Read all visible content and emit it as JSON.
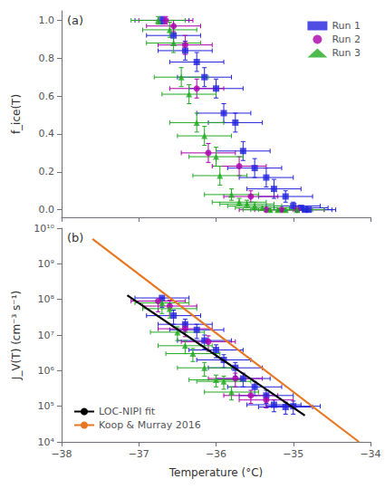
{
  "chart_data": [
    {
      "type": "scatter",
      "ylabel": "f_ice(T)",
      "annotations": [
        "(a)"
      ],
      "xlim": [
        -38,
        -34
      ],
      "xticks": [
        -38,
        -37,
        -36,
        -35,
        -34
      ],
      "ylim": [
        -0.04,
        1.05
      ],
      "yticks": [
        {
          "value": 0,
          "label": "0.0"
        },
        0.2,
        0.4,
        0.6,
        0.8,
        {
          "value": 1,
          "label": "1.0"
        }
      ],
      "tick_labels": "y",
      "grid": false,
      "legend": "upper right",
      "series": [
        {
          "name": "Run 1",
          "color": "#2222dd",
          "marker": "square",
          "x": [
            -36.7,
            -36.55,
            -36.4,
            -36.25,
            -36.15,
            -36.0,
            -35.9,
            -35.75,
            -35.65,
            -35.5,
            -35.35,
            -35.25,
            -35.1,
            -35.0,
            -34.9,
            -34.85,
            -34.8
          ],
          "values": [
            1.0,
            0.92,
            0.84,
            0.78,
            0.7,
            0.64,
            0.51,
            0.46,
            0.31,
            0.22,
            0.17,
            0.11,
            0.07,
            0.02,
            0.01,
            0.0,
            0.0
          ],
          "xerr_lo": [
            0.35,
            0.35,
            0.35,
            0.35,
            0.35,
            0.35,
            0.35,
            0.35,
            0.35,
            0.35,
            0.35,
            0.35,
            0.35,
            0.35,
            0.35,
            0.35,
            0.35
          ],
          "xerr_hi": [
            0.35,
            0.35,
            0.35,
            0.35,
            0.35,
            0.35,
            0.35,
            0.35,
            0.35,
            0.35,
            0.35,
            0.35,
            0.35,
            0.35,
            0.35,
            0.35,
            0.35
          ],
          "yerr": [
            0.02,
            0.05,
            0.05,
            0.05,
            0.05,
            0.05,
            0.05,
            0.05,
            0.05,
            0.05,
            0.05,
            0.05,
            0.03,
            0.02,
            0.01,
            0.01,
            0.01
          ]
        },
        {
          "name": "Run 2",
          "color": "#aa00aa",
          "marker": "circle",
          "x": [
            -36.65,
            -36.55,
            -36.4,
            -36.25,
            -36.1,
            -35.7,
            -35.55,
            -35.35,
            -35.15,
            -34.95
          ],
          "values": [
            1.0,
            0.97,
            0.87,
            0.64,
            0.3,
            0.23,
            0.07,
            0.0,
            0.0,
            0.0
          ],
          "xerr_lo": [
            0.35,
            0.35,
            0.35,
            0.35,
            0.35,
            0.35,
            0.35,
            0.35,
            0.35,
            0.35
          ],
          "xerr_hi": [
            0.35,
            0.35,
            0.35,
            0.35,
            0.35,
            0.35,
            0.35,
            0.35,
            0.35,
            0.35
          ],
          "yerr": [
            0.02,
            0.03,
            0.05,
            0.05,
            0.05,
            0.05,
            0.03,
            0.01,
            0.01,
            0.01
          ]
        },
        {
          "name": "Run 3",
          "color": "#22aa22",
          "marker": "triangle",
          "x": [
            -36.75,
            -36.6,
            -36.55,
            -36.45,
            -36.35,
            -36.25,
            -36.15,
            -36.0,
            -35.95,
            -35.8,
            -35.7,
            -35.6,
            -35.5,
            -35.4,
            -35.3,
            -35.2,
            -35.1,
            -34.95
          ],
          "values": [
            1.0,
            0.95,
            0.88,
            0.7,
            0.61,
            0.46,
            0.39,
            0.28,
            0.18,
            0.08,
            0.04,
            0.03,
            0.02,
            0.01,
            0.0,
            0.0,
            0.0,
            0.0
          ],
          "xerr_lo": [
            0.35,
            0.35,
            0.35,
            0.35,
            0.35,
            0.35,
            0.35,
            0.35,
            0.35,
            0.35,
            0.35,
            0.35,
            0.35,
            0.35,
            0.35,
            0.35,
            0.35,
            0.35
          ],
          "xerr_hi": [
            0.35,
            0.35,
            0.35,
            0.35,
            0.35,
            0.35,
            0.35,
            0.35,
            0.35,
            0.35,
            0.35,
            0.35,
            0.35,
            0.35,
            0.35,
            0.35,
            0.35,
            0.35
          ],
          "yerr": [
            0.02,
            0.04,
            0.05,
            0.05,
            0.05,
            0.05,
            0.05,
            0.05,
            0.05,
            0.03,
            0.02,
            0.02,
            0.02,
            0.01,
            0.01,
            0.01,
            0.01,
            0.01
          ]
        }
      ]
    },
    {
      "type": "scatter",
      "xlabel": "Temperature (°C)",
      "ylabel": "J_V(T) (cm⁻³ s⁻¹)",
      "annotations": [
        "(b)"
      ],
      "log": "y",
      "xlim": [
        -38,
        -34
      ],
      "xticks": [
        {
          "value": -38,
          "label": "−38"
        },
        {
          "value": -37,
          "label": "−37"
        },
        {
          "value": -36,
          "label": "−36"
        },
        {
          "value": -35,
          "label": "−35"
        },
        {
          "value": -34,
          "label": "−34"
        }
      ],
      "ylim": [
        10000,
        10000000000
      ],
      "yticks": [
        {
          "value": 10000,
          "label": "10⁴"
        },
        {
          "value": 100000,
          "label": "10⁵"
        },
        {
          "value": 1000000,
          "label": "10⁶"
        },
        {
          "value": 10000000,
          "label": "10⁷"
        },
        {
          "value": 100000000,
          "label": "10⁸"
        },
        {
          "value": 1000000000,
          "label": "10⁹"
        },
        {
          "value": 10000000000,
          "label": "10¹⁰"
        }
      ],
      "grid": false,
      "legend": "lower left",
      "series": [
        {
          "color": "#2222dd",
          "marker": "square",
          "x": [
            -36.7,
            -36.55,
            -36.4,
            -36.25,
            -36.15,
            -36.0,
            -35.9,
            -35.75,
            -35.65,
            -35.5,
            -35.35,
            -35.25,
            -35.1,
            -35.0
          ],
          "values": [
            110000000.0,
            35000000.0,
            20000000.0,
            14000000.0,
            7000000.0,
            3800000.0,
            2000000.0,
            1200000.0,
            600000.0,
            350000.0,
            200000.0,
            110000.0,
            95000.0,
            100000.0
          ],
          "xerr_lo": [
            0.35,
            0.35,
            0.35,
            0.35,
            0.35,
            0.35,
            0.35,
            0.35,
            0.35,
            0.35,
            0.35,
            0.35,
            0.35,
            0.35
          ],
          "xerr_hi": [
            0.35,
            0.35,
            0.35,
            0.35,
            0.35,
            0.35,
            0.35,
            0.35,
            0.35,
            0.35,
            0.35,
            0.35,
            0.35,
            0.35
          ],
          "yerr_lo": [
            50000000.0,
            15000000.0,
            8000000.0,
            6000000.0,
            3000000.0,
            1500000.0,
            800000.0,
            500000.0,
            250000.0,
            150000.0,
            80000.0,
            40000.0,
            35000.0,
            40000.0
          ],
          "yerr_hi": [
            0.0,
            15000000.0,
            8000000.0,
            6000000.0,
            3000000.0,
            1500000.0,
            800000.0,
            500000.0,
            250000.0,
            150000.0,
            80000.0,
            40000.0,
            35000.0,
            40000.0
          ]
        },
        {
          "color": "#aa00aa",
          "marker": "circle",
          "x": [
            -36.75,
            -36.6,
            -36.4,
            -36.1,
            -35.75,
            -35.55,
            -35.35
          ],
          "values": [
            90000000.0,
            65000000.0,
            15000000.0,
            6500000.0,
            600000.0,
            200000.0,
            150000.0
          ],
          "xerr_lo": [
            0.35,
            0.35,
            0.35,
            0.35,
            0.35,
            0.35,
            0.35
          ],
          "xerr_hi": [
            0.35,
            0.35,
            0.35,
            0.35,
            0.35,
            0.35,
            0.35
          ],
          "yerr_lo": [
            45000000.0,
            30000000.0,
            6000000.0,
            3000000.0,
            250000.0,
            80000.0,
            60000.0
          ],
          "yerr_hi": [
            0.0,
            30000000.0,
            6000000.0,
            3000000.0,
            250000.0,
            80000.0,
            60000.0
          ]
        },
        {
          "color": "#22aa22",
          "marker": "triangle",
          "x": [
            -36.7,
            -36.6,
            -36.5,
            -36.4,
            -36.3,
            -36.15,
            -36.0,
            -35.9,
            -35.8
          ],
          "values": [
            80000000.0,
            55000000.0,
            12000000.0,
            5000000.0,
            3000000.0,
            1200000.0,
            550000.0,
            500000.0,
            250000.0
          ],
          "xerr_lo": [
            0.35,
            0.35,
            0.35,
            0.35,
            0.35,
            0.35,
            0.35,
            0.35,
            0.35
          ],
          "xerr_hi": [
            0.35,
            0.35,
            0.35,
            0.35,
            0.35,
            0.35,
            0.35,
            0.35,
            0.35
          ],
          "yerr_lo": [
            40000000.0,
            25000000.0,
            5000000.0,
            2000000.0,
            1200000.0,
            500000.0,
            200000.0,
            200000.0,
            100000.0
          ],
          "yerr_hi": [
            0.0,
            25000000.0,
            5000000.0,
            2000000.0,
            1200000.0,
            500000.0,
            200000.0,
            200000.0,
            100000.0
          ]
        },
        {
          "name": "LOC-NIPI fit",
          "type": "line",
          "color": "#000000",
          "line_style": "solid",
          "x": [
            -37.15,
            -34.85
          ],
          "values": [
            130000000.0,
            55000.0
          ]
        },
        {
          "name": "Koop & Murray 2016",
          "type": "line",
          "color": "#e87722",
          "line_style": "solid",
          "x": [
            -37.6,
            -34.15
          ],
          "values": [
            5000000000.0,
            10000.0
          ]
        }
      ]
    }
  ]
}
